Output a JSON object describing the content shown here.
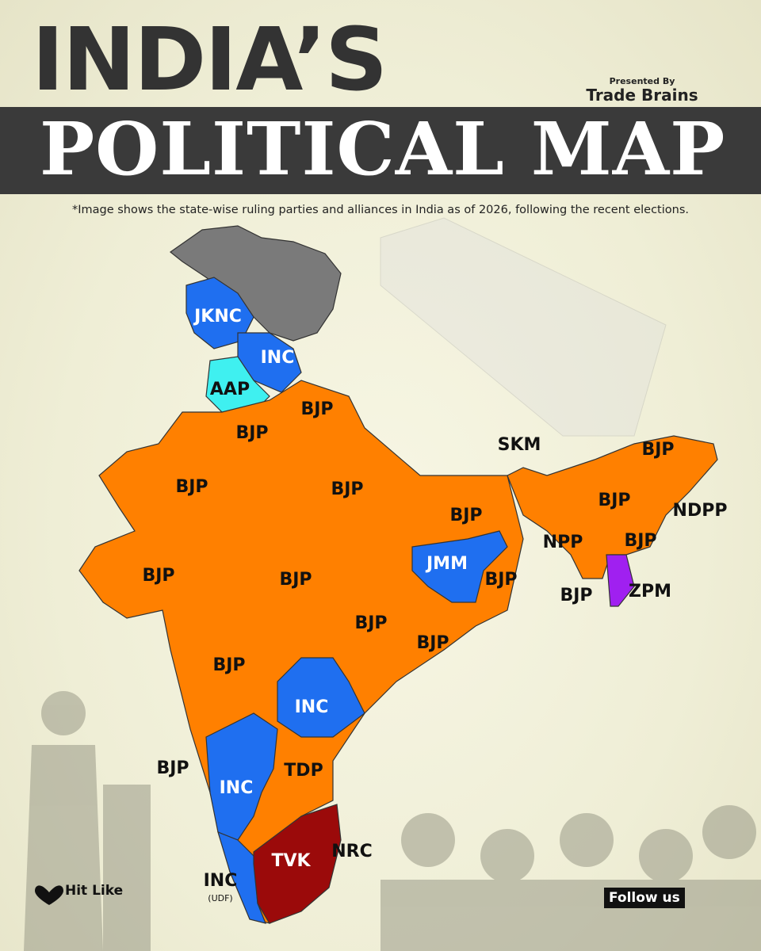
{
  "header": {
    "title_line1": "INDIA’S",
    "title_line2": "POLITICAL MAP",
    "presenter_label": "Presented By",
    "presenter_name": "Trade Brains"
  },
  "note": "*Image shows the state-wise ruling parties and alliances in India as of 2026, following the recent elections.",
  "map": {
    "labels": [
      {
        "text": "JKNC"
      },
      {
        "text": "INC"
      },
      {
        "text": "AAP"
      },
      {
        "text": "BJP"
      },
      {
        "text": "BJP"
      },
      {
        "text": "BJP"
      },
      {
        "text": "BJP"
      },
      {
        "text": "BJP"
      },
      {
        "text": "SKM"
      },
      {
        "text": "BJP"
      },
      {
        "text": "BJP"
      },
      {
        "text": "NDPP"
      },
      {
        "text": "NPP"
      },
      {
        "text": "BJP"
      },
      {
        "text": "BJP"
      },
      {
        "text": "ZPM"
      },
      {
        "text": "JMM"
      },
      {
        "text": "BJP"
      },
      {
        "text": "BJP"
      },
      {
        "text": "BJP"
      },
      {
        "text": "BJP"
      },
      {
        "text": "BJP"
      },
      {
        "text": "BJP"
      },
      {
        "text": "INC"
      },
      {
        "text": "BJP"
      },
      {
        "text": "INC"
      },
      {
        "text": "TDP"
      },
      {
        "text": "TVK"
      },
      {
        "text": "NRC"
      },
      {
        "text": "INC"
      },
      {
        "text": "(UDF)"
      }
    ]
  },
  "footer": {
    "like": "Hit Like",
    "follow": "Follow us"
  }
}
